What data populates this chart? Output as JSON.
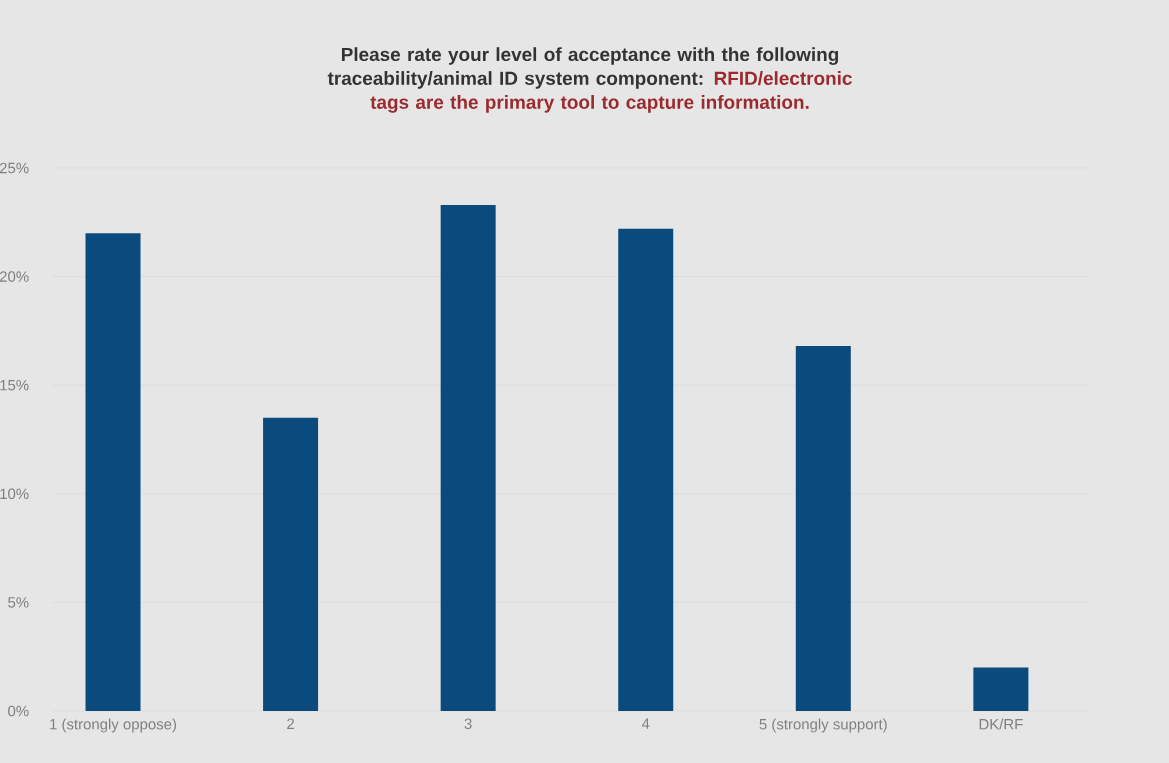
{
  "chart_data": {
    "type": "bar",
    "title": "Please rate your level of acceptance with the following traceability/animal ID system component:",
    "subtitle": "RFID/electronic tags are the primary tool to capture information.",
    "categories": [
      "1 (strongly oppose)",
      "2",
      "3",
      "4",
      "5 (strongly support)",
      "DK/RF"
    ],
    "values": [
      22.0,
      13.5,
      23.3,
      22.2,
      16.8,
      2.0
    ],
    "color": "#0b4a7d",
    "ylim": [
      0,
      25
    ],
    "yticks": [
      {
        "value": 0,
        "label": "0%"
      },
      {
        "value": 5,
        "label": "5%"
      },
      {
        "value": 10,
        "label": "10%"
      },
      {
        "value": 15,
        "label": "15%"
      },
      {
        "value": 20,
        "label": "20%"
      },
      {
        "value": 25,
        "label": "25%"
      }
    ],
    "grid": "y"
  }
}
